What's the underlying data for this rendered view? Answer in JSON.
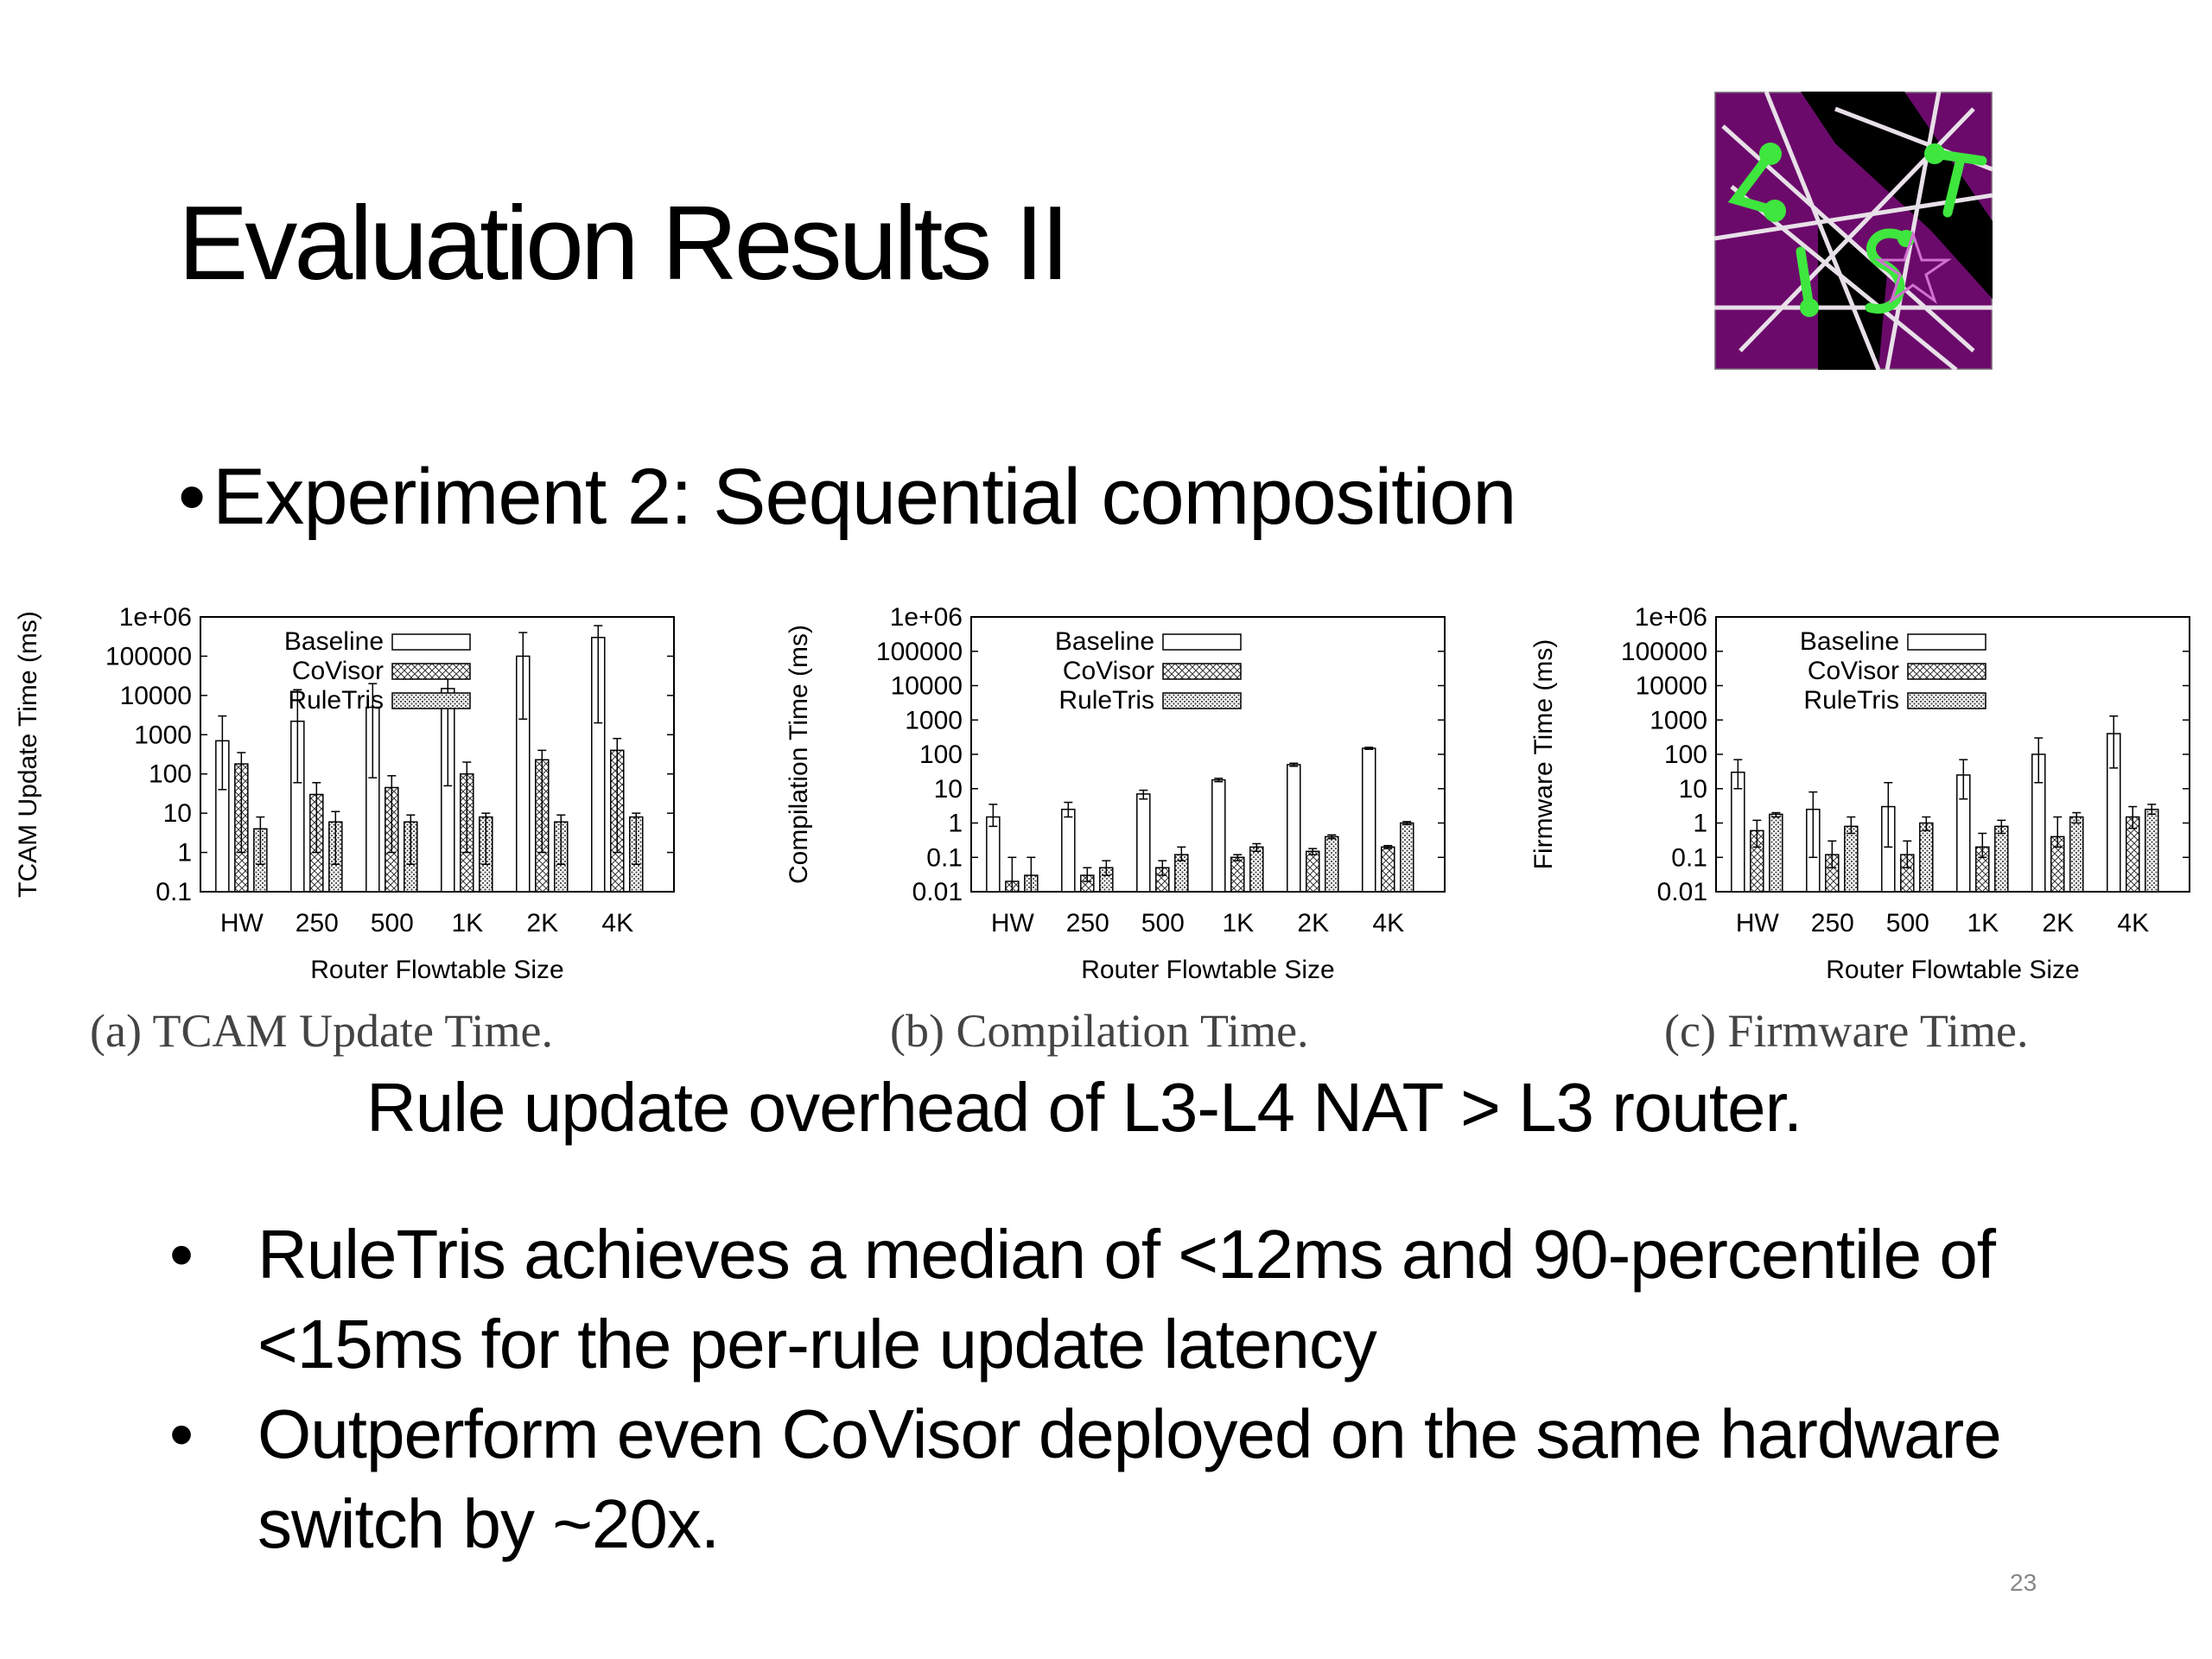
{
  "slide": {
    "title": "Evaluation Results II",
    "subtitle": "Experiment 2: Sequential composition",
    "subtitle_bullet": "•",
    "summary": "Rule update overhead of L3-L4 NAT > L3 router.",
    "bullets": [
      "RuleTris achieves a median of <12ms and 90-percentile of <15ms for the per-rule update latency",
      "Outperform even CoVisor deployed on the same hardware switch by ~20x."
    ],
    "bullet_mark": "•",
    "page_number": "23"
  },
  "logo": {
    "icon": "list-lab-logo",
    "colors": {
      "background": "#6b0a6b",
      "accent": "#3ee63e",
      "stripe": "#000000",
      "lines": "#e8e0e8"
    }
  },
  "captions": [
    "(a) TCAM Update Time.",
    "(b) Compilation Time.",
    "(c) Firmware Time."
  ],
  "chart_data": [
    {
      "type": "bar",
      "scale": "log",
      "ylabel": "TCAM Update Time (ms)",
      "xlabel": "Router Flowtable Size",
      "categories": [
        "HW",
        "250",
        "500",
        "1K",
        "2K",
        "4K"
      ],
      "ylim": [
        0.1,
        1000000
      ],
      "yticks": [
        "0.1",
        "1",
        "10",
        "100",
        "1000",
        "10000",
        "100000",
        "1e+06"
      ],
      "legend_position": "top-left",
      "series": [
        {
          "name": "Baseline",
          "pattern": "none",
          "values": [
            700,
            2200,
            5000,
            15000,
            100000,
            300000
          ],
          "error": [
            [
              40,
              3000
            ],
            [
              60,
              14000
            ],
            [
              80,
              20000
            ],
            [
              50,
              30000
            ],
            [
              2500,
              400000
            ],
            [
              2000,
              600000
            ]
          ]
        },
        {
          "name": "CoVisor",
          "pattern": "cross",
          "values": [
            180,
            30,
            45,
            100,
            230,
            400
          ],
          "error": [
            [
              1,
              350
            ],
            [
              1,
              60
            ],
            [
              1,
              90
            ],
            [
              1,
              200
            ],
            [
              1,
              400
            ],
            [
              1,
              800
            ]
          ]
        },
        {
          "name": "RuleTris",
          "pattern": "dots",
          "values": [
            4,
            6,
            6,
            8,
            6,
            8
          ],
          "error": [
            [
              0.5,
              8
            ],
            [
              0.5,
              11
            ],
            [
              0.5,
              9
            ],
            [
              0.5,
              10
            ],
            [
              0.5,
              9
            ],
            [
              0.5,
              10
            ]
          ]
        }
      ]
    },
    {
      "type": "bar",
      "scale": "log",
      "ylabel": "Compilation Time (ms)",
      "xlabel": "Router Flowtable Size",
      "categories": [
        "HW",
        "250",
        "500",
        "1K",
        "2K",
        "4K"
      ],
      "ylim": [
        0.01,
        1000000
      ],
      "yticks": [
        "0.01",
        "0.1",
        "1",
        "10",
        "100",
        "1000",
        "10000",
        "100000",
        "1e+06"
      ],
      "legend_position": "top-left",
      "series": [
        {
          "name": "Baseline",
          "pattern": "none",
          "values": [
            1.5,
            2.5,
            7,
            18,
            50,
            150
          ],
          "error": [
            [
              0.8,
              3.5
            ],
            [
              1.5,
              4
            ],
            [
              5,
              9
            ],
            [
              16,
              20
            ],
            [
              45,
              55
            ],
            [
              140,
              160
            ]
          ]
        },
        {
          "name": "CoVisor",
          "pattern": "cross",
          "values": [
            0.02,
            0.03,
            0.05,
            0.1,
            0.15,
            0.2
          ],
          "error": [
            [
              0.01,
              0.1
            ],
            [
              0.02,
              0.05
            ],
            [
              0.03,
              0.08
            ],
            [
              0.08,
              0.12
            ],
            [
              0.12,
              0.18
            ],
            [
              0.18,
              0.22
            ]
          ]
        },
        {
          "name": "RuleTris",
          "pattern": "dots",
          "values": [
            0.03,
            0.05,
            0.12,
            0.2,
            0.4,
            1
          ],
          "error": [
            [
              0.01,
              0.1
            ],
            [
              0.03,
              0.08
            ],
            [
              0.08,
              0.2
            ],
            [
              0.15,
              0.25
            ],
            [
              0.35,
              0.45
            ],
            [
              0.9,
              1.1
            ]
          ]
        }
      ]
    },
    {
      "type": "bar",
      "scale": "log",
      "ylabel": "Firmware Time (ms)",
      "xlabel": "Router Flowtable Size",
      "categories": [
        "HW",
        "250",
        "500",
        "1K",
        "2K",
        "4K"
      ],
      "ylim": [
        0.01,
        1000000
      ],
      "yticks": [
        "0.01",
        "0.1",
        "1",
        "10",
        "100",
        "1000",
        "10000",
        "100000",
        "1e+06"
      ],
      "legend_position": "top-left",
      "series": [
        {
          "name": "Baseline",
          "pattern": "none",
          "values": [
            30,
            2.5,
            3,
            25,
            100,
            400
          ],
          "error": [
            [
              10,
              70
            ],
            [
              0.1,
              8
            ],
            [
              0.2,
              15
            ],
            [
              5,
              70
            ],
            [
              15,
              300
            ],
            [
              40,
              1300
            ]
          ]
        },
        {
          "name": "CoVisor",
          "pattern": "cross",
          "values": [
            0.6,
            0.12,
            0.12,
            0.2,
            0.4,
            1.5
          ],
          "error": [
            [
              0.2,
              1.2
            ],
            [
              0.05,
              0.3
            ],
            [
              0.05,
              0.3
            ],
            [
              0.1,
              0.5
            ],
            [
              0.2,
              1.5
            ],
            [
              0.7,
              3
            ]
          ]
        },
        {
          "name": "RuleTris",
          "pattern": "dots",
          "values": [
            1.8,
            0.8,
            1,
            0.8,
            1.5,
            2.5
          ],
          "error": [
            [
              1.5,
              2
            ],
            [
              0.5,
              1.5
            ],
            [
              0.6,
              1.5
            ],
            [
              0.5,
              1.2
            ],
            [
              1,
              2
            ],
            [
              1.8,
              3.5
            ]
          ]
        }
      ]
    }
  ]
}
